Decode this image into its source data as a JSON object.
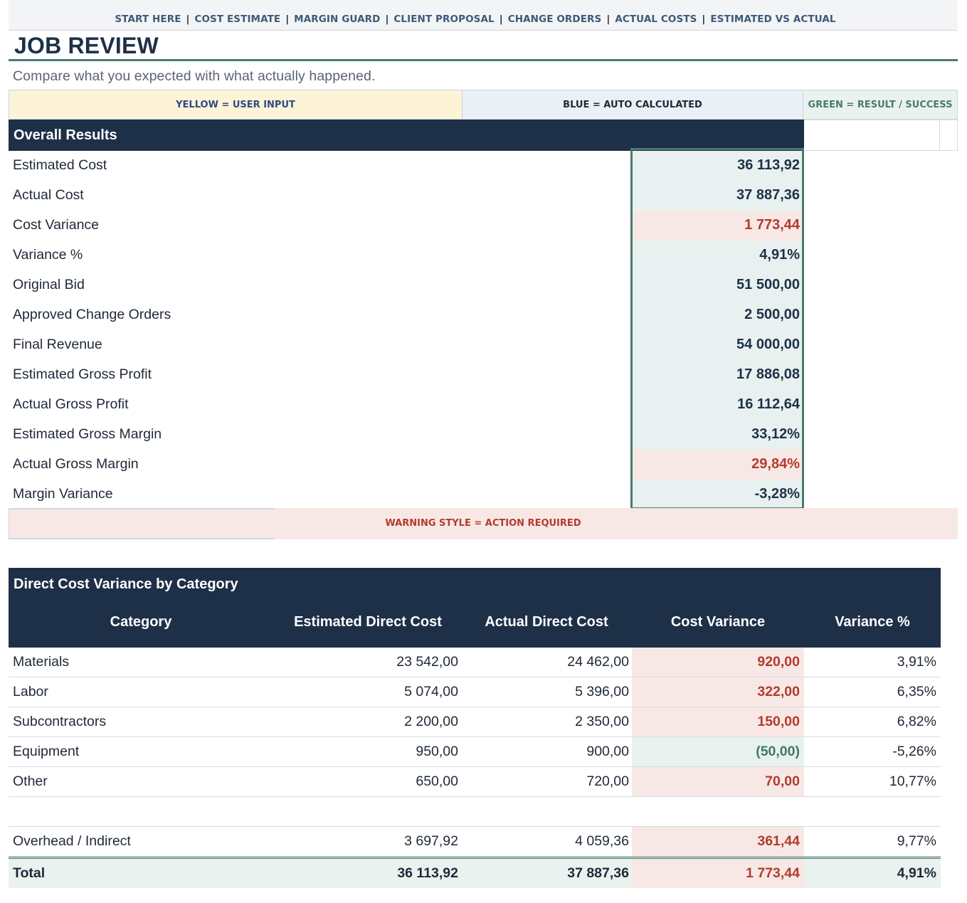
{
  "nav": {
    "items": [
      "START HERE",
      "COST ESTIMATE",
      "MARGIN GUARD",
      "CLIENT PROPOSAL",
      "CHANGE ORDERS",
      "ACTUAL COSTS",
      "ESTIMATED VS ACTUAL"
    ],
    "separator": "|"
  },
  "page": {
    "title": "JOB REVIEW",
    "subtitle": "Compare what you expected with what actually happened."
  },
  "legend": {
    "yellow": "YELLOW = USER INPUT",
    "blue": "BLUE = AUTO CALCULATED",
    "green": "GREEN = RESULT / SUCCESS",
    "warning": "WARNING STYLE = ACTION REQUIRED"
  },
  "overall": {
    "heading": "Overall Results",
    "rows": [
      {
        "label": "Estimated Cost",
        "value": "36 113,92",
        "status": "normal"
      },
      {
        "label": "Actual Cost",
        "value": "37 887,36",
        "status": "normal"
      },
      {
        "label": "Cost Variance",
        "value": "1 773,44",
        "status": "warning"
      },
      {
        "label": "Variance %",
        "value": "4,91%",
        "status": "normal"
      },
      {
        "label": "Original Bid",
        "value": "51 500,00",
        "status": "normal"
      },
      {
        "label": "Approved Change Orders",
        "value": "2 500,00",
        "status": "normal"
      },
      {
        "label": "Final Revenue",
        "value": "54 000,00",
        "status": "normal"
      },
      {
        "label": "Estimated Gross Profit",
        "value": "17 886,08",
        "status": "normal"
      },
      {
        "label": "Actual Gross Profit",
        "value": "16 112,64",
        "status": "normal"
      },
      {
        "label": "Estimated Gross Margin",
        "value": "33,12%",
        "status": "normal"
      },
      {
        "label": "Actual Gross Margin",
        "value": "29,84%",
        "status": "warning"
      },
      {
        "label": "Margin Variance",
        "value": "-3,28%",
        "status": "normal"
      }
    ]
  },
  "direct_cost": {
    "heading": "Direct Cost Variance by Category",
    "columns": [
      "Category",
      "Estimated Direct Cost",
      "Actual Direct Cost",
      "Cost Variance",
      "Variance %"
    ],
    "rows": [
      {
        "category": "Materials",
        "estimated": "23 542,00",
        "actual": "24 462,00",
        "variance": "920,00",
        "pct": "3,91%",
        "status": "bad"
      },
      {
        "category": "Labor",
        "estimated": "5 074,00",
        "actual": "5 396,00",
        "variance": "322,00",
        "pct": "6,35%",
        "status": "bad"
      },
      {
        "category": "Subcontractors",
        "estimated": "2 200,00",
        "actual": "2 350,00",
        "variance": "150,00",
        "pct": "6,82%",
        "status": "bad"
      },
      {
        "category": "Equipment",
        "estimated": "950,00",
        "actual": "900,00",
        "variance": "(50,00)",
        "pct": "-5,26%",
        "status": "good"
      },
      {
        "category": "Other",
        "estimated": "650,00",
        "actual": "720,00",
        "variance": "70,00",
        "pct": "10,77%",
        "status": "bad"
      }
    ],
    "overhead": {
      "category": "Overhead / Indirect",
      "estimated": "3 697,92",
      "actual": "4 059,36",
      "variance": "361,44",
      "pct": "9,77%",
      "status": "bad"
    },
    "total": {
      "category": "Total",
      "estimated": "36 113,92",
      "actual": "37 887,36",
      "variance": "1 773,44",
      "pct": "4,91%",
      "status": "bad"
    }
  },
  "colors": {
    "navy": "#1e3048",
    "teal": "#4a7a72",
    "warning_bg": "#f8e8e5",
    "warning_text": "#b23b2e",
    "calc_bg": "#e8f1ef",
    "input_bg": "#fdf3d6",
    "good_text": "#3f7a66"
  }
}
